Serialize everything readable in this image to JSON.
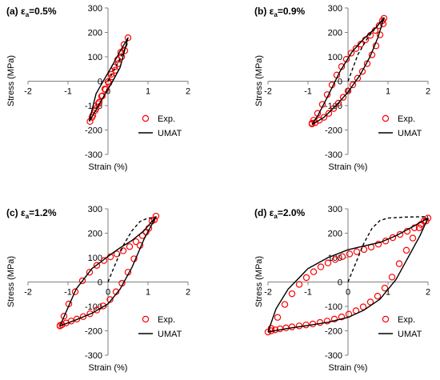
{
  "colors": {
    "exp": "#ff0000",
    "umat": "#000000",
    "axis": "#808080"
  },
  "chart_data": [
    {
      "type": "scatter",
      "panel_tag": "(a) ε",
      "panel_sub": "a",
      "panel_val": "=0.5%",
      "xlabel": "Strain (%)",
      "ylabel": "Stress (MPa)",
      "xlim": [
        -2,
        2
      ],
      "ylim": [
        -300,
        300
      ],
      "xticks": [
        -2,
        -1,
        0,
        1,
        2
      ],
      "yticks": [
        300,
        200,
        100,
        0,
        -100,
        -200,
        -300
      ],
      "grid": false,
      "legend_position": "bottom-right",
      "legend": [
        "Exp.",
        "UMAT"
      ],
      "series": [
        {
          "name": "Exp.",
          "marker": "circle",
          "x": [
            -0.45,
            -0.38,
            -0.3,
            -0.22,
            -0.14,
            -0.06,
            0.02,
            0.1,
            0.18,
            0.26,
            0.34,
            0.42,
            0.5,
            0.4,
            0.32,
            0.24,
            0.16,
            0.08,
            0.0,
            -0.08,
            -0.16,
            -0.24,
            -0.32,
            -0.4
          ],
          "y": [
            -165,
            -140,
            -112,
            -86,
            -60,
            -34,
            -8,
            18,
            45,
            72,
            100,
            125,
            178,
            150,
            118,
            88,
            58,
            28,
            -2,
            -32,
            -62,
            -92,
            -120,
            -148
          ]
        },
        {
          "name": "UMAT",
          "line": "solid",
          "x": [
            -0.47,
            -0.3,
            -0.1,
            0.1,
            0.3,
            0.5,
            0.3,
            0.1,
            -0.1,
            -0.3,
            -0.47
          ],
          "y": [
            -165,
            -118,
            -60,
            -5,
            55,
            178,
            122,
            62,
            6,
            -52,
            -165
          ]
        },
        {
          "name": "",
          "line": "dashed",
          "x": [
            0.0,
            0.2,
            0.4,
            0.5
          ],
          "y": [
            0.0,
            60,
            125,
            160
          ]
        }
      ]
    },
    {
      "type": "scatter",
      "panel_tag": "(b) ε",
      "panel_sub": "a",
      "panel_val": "=0.9%",
      "xlabel": "Strain (%)",
      "ylabel": "Stress (MPa)",
      "xlim": [
        -2,
        2
      ],
      "ylim": [
        -300,
        300
      ],
      "xticks": [
        -2,
        -1,
        0,
        1,
        2
      ],
      "yticks": [
        300,
        200,
        100,
        0,
        -100,
        -200,
        -300
      ],
      "grid": false,
      "legend_position": "bottom-right",
      "legend": [
        "Exp.",
        "UMAT"
      ],
      "series": [
        {
          "name": "Exp.",
          "marker": "circle",
          "x": [
            -0.9,
            -0.82,
            -0.72,
            -0.6,
            -0.48,
            -0.36,
            -0.24,
            -0.12,
            0.0,
            0.12,
            0.24,
            0.36,
            0.48,
            0.6,
            0.7,
            0.8,
            0.88,
            0.9,
            0.86,
            0.78,
            0.68,
            0.56,
            0.44,
            0.32,
            0.2,
            0.08,
            -0.04,
            -0.16,
            -0.28,
            -0.4,
            -0.52,
            -0.64,
            -0.76,
            -0.86,
            -0.9
          ],
          "y": [
            -175,
            -170,
            -160,
            -148,
            -132,
            -112,
            -90,
            -66,
            -40,
            -15,
            12,
            40,
            72,
            108,
            145,
            190,
            235,
            258,
            248,
            228,
            208,
            188,
            170,
            152,
            134,
            115,
            90,
            60,
            25,
            -15,
            -55,
            -95,
            -132,
            -160,
            -172
          ]
        },
        {
          "name": "UMAT",
          "line": "solid",
          "x": [
            -0.9,
            -0.6,
            -0.3,
            0.0,
            0.3,
            0.55,
            0.75,
            0.9,
            0.7,
            0.4,
            0.1,
            -0.2,
            -0.5,
            -0.75,
            -0.9
          ],
          "y": [
            -178,
            -148,
            -100,
            -45,
            25,
            100,
            180,
            260,
            220,
            175,
            120,
            40,
            -60,
            -140,
            -178
          ]
        },
        {
          "name": "",
          "line": "dashed",
          "x": [
            0.0,
            0.25,
            0.5,
            0.75,
            0.9
          ],
          "y": [
            0.0,
            110,
            180,
            230,
            255
          ]
        }
      ]
    },
    {
      "type": "scatter",
      "panel_tag": "(c) ε",
      "panel_sub": "a",
      "panel_val": "=1.2%",
      "xlabel": "Strain (%)",
      "ylabel": "Stress (MPa)",
      "xlim": [
        -2,
        2
      ],
      "ylim": [
        -300,
        300
      ],
      "xticks": [
        -2,
        -1,
        0,
        1,
        2
      ],
      "yticks": [
        300,
        200,
        100,
        0,
        -100,
        -200,
        -300
      ],
      "grid": false,
      "legend_position": "bottom-right",
      "legend": [
        "Exp.",
        "UMAT"
      ],
      "series": [
        {
          "name": "Exp.",
          "marker": "circle",
          "x": [
            -1.2,
            -1.15,
            -1.05,
            -0.92,
            -0.78,
            -0.62,
            -0.45,
            -0.28,
            -0.12,
            0.05,
            0.2,
            0.35,
            0.5,
            0.65,
            0.8,
            0.95,
            1.1,
            1.2,
            1.16,
            1.02,
            0.86,
            0.7,
            0.54,
            0.38,
            0.22,
            0.06,
            -0.1,
            -0.28,
            -0.46,
            -0.64,
            -0.82,
            -0.98,
            -1.1,
            -1.2
          ],
          "y": [
            -180,
            -175,
            -168,
            -160,
            -152,
            -142,
            -130,
            -115,
            -98,
            -72,
            -40,
            -5,
            40,
            95,
            150,
            205,
            250,
            270,
            255,
            220,
            190,
            165,
            145,
            128,
            115,
            103,
            88,
            68,
            40,
            5,
            -40,
            -90,
            -140,
            -178
          ]
        },
        {
          "name": "UMAT",
          "line": "solid",
          "x": [
            -1.2,
            -0.8,
            -0.4,
            0.0,
            0.3,
            0.6,
            0.9,
            1.2,
            0.9,
            0.6,
            0.3,
            0.0,
            -0.4,
            -0.8,
            -1.2
          ],
          "y": [
            -180,
            -155,
            -128,
            -90,
            -30,
            60,
            175,
            268,
            210,
            170,
            140,
            105,
            55,
            -30,
            -180
          ]
        },
        {
          "name": "",
          "line": "dashed",
          "x": [
            0.0,
            0.2,
            0.4,
            0.6,
            0.8,
            1.0,
            1.2
          ],
          "y": [
            0.0,
            80,
            155,
            210,
            248,
            262,
            265
          ]
        }
      ]
    },
    {
      "type": "scatter",
      "panel_tag": "(d) ε",
      "panel_sub": "a",
      "panel_val": "=2.0%",
      "xlabel": "Strain (%)",
      "ylabel": "Stress (MPa)",
      "xlim": [
        -2,
        2
      ],
      "ylim": [
        -300,
        300
      ],
      "xticks": [
        -2,
        -1,
        0,
        1,
        2
      ],
      "yticks": [
        300,
        200,
        100,
        0,
        -100,
        -200,
        -300
      ],
      "grid": false,
      "legend_position": "bottom-right",
      "legend": [
        "Exp.",
        "UMAT"
      ],
      "series": [
        {
          "name": "Exp.",
          "marker": "circle",
          "x": [
            -2.0,
            -1.92,
            -1.82,
            -1.7,
            -1.55,
            -1.4,
            -1.22,
            -1.05,
            -0.88,
            -0.7,
            -0.52,
            -0.34,
            -0.16,
            0.02,
            0.2,
            0.38,
            0.56,
            0.74,
            0.92,
            1.1,
            1.28,
            1.46,
            1.62,
            1.78,
            1.9,
            2.0,
            1.95,
            1.82,
            1.66,
            1.48,
            1.3,
            1.12,
            0.94,
            0.76,
            0.58,
            0.4,
            0.22,
            0.04,
            -0.14,
            -0.32,
            -0.5,
            -0.68,
            -0.86,
            -1.04,
            -1.22,
            -1.4,
            -1.58,
            -1.76,
            -1.92
          ],
          "y": [
            -205,
            -200,
            -196,
            -192,
            -188,
            -184,
            -180,
            -176,
            -172,
            -166,
            -160,
            -152,
            -143,
            -132,
            -118,
            -102,
            -82,
            -58,
            -25,
            20,
            75,
            130,
            180,
            222,
            250,
            262,
            250,
            236,
            222,
            208,
            195,
            182,
            168,
            155,
            143,
            133,
            124,
            115,
            104,
            92,
            78,
            62,
            42,
            18,
            -10,
            -48,
            -92,
            -145,
            -190
          ]
        },
        {
          "name": "UMAT",
          "line": "solid",
          "x": [
            -2.0,
            -1.5,
            -1.0,
            -0.5,
            0.0,
            0.4,
            0.8,
            1.2,
            1.5,
            1.8,
            2.0,
            1.6,
            1.2,
            0.8,
            0.4,
            0.0,
            -0.5,
            -1.0,
            -1.5,
            -1.8,
            -2.0
          ],
          "y": [
            -205,
            -190,
            -178,
            -165,
            -145,
            -115,
            -70,
            10,
            100,
            190,
            262,
            225,
            190,
            162,
            148,
            132,
            100,
            55,
            -30,
            -110,
            -205
          ]
        },
        {
          "name": "",
          "line": "dashed",
          "x": [
            0.0,
            0.2,
            0.4,
            0.6,
            0.8,
            1.0,
            1.4,
            2.0
          ],
          "y": [
            0.0,
            80,
            160,
            220,
            252,
            262,
            266,
            268
          ]
        }
      ]
    }
  ]
}
